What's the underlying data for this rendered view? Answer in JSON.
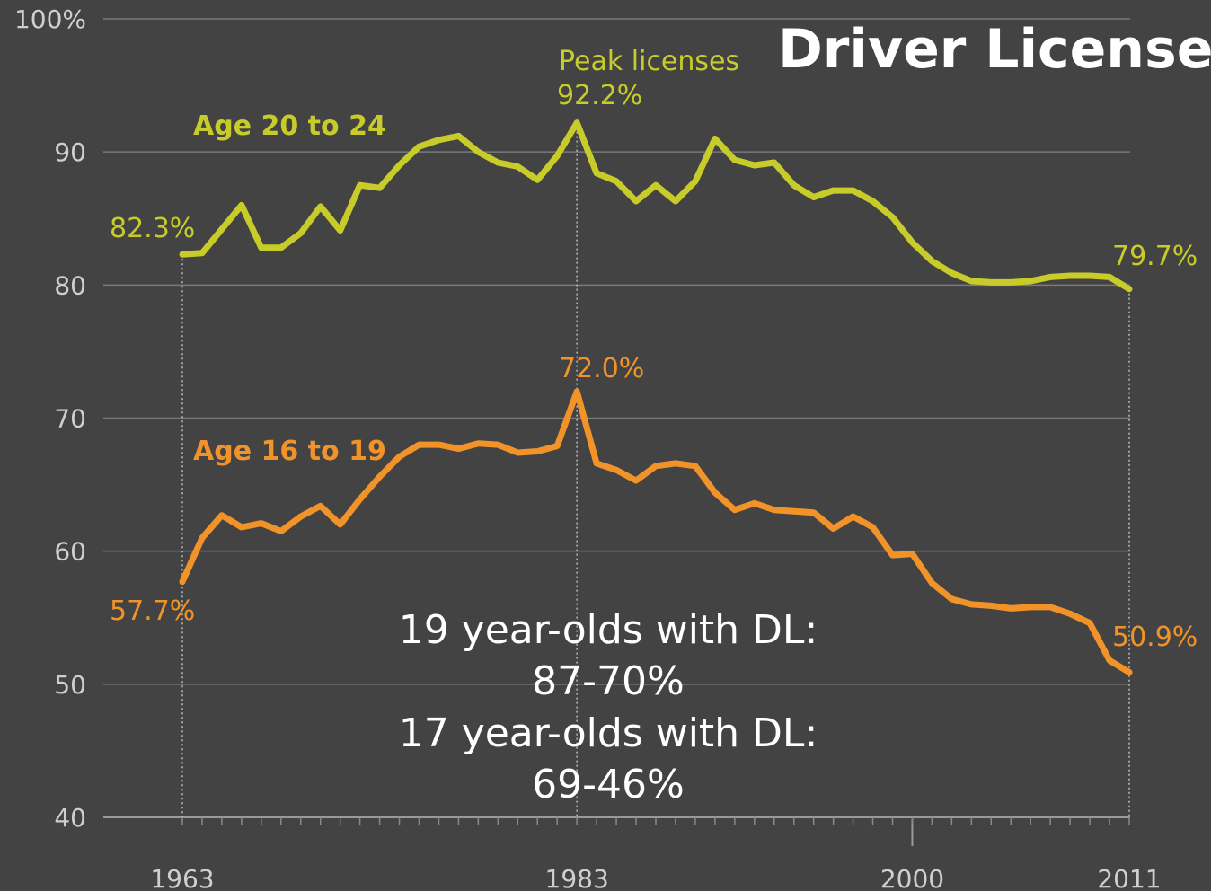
{
  "chart_data": {
    "type": "line",
    "title": "Driver Licenses",
    "xlabel": "",
    "ylabel": "",
    "x_ticks": [
      "1963",
      "1983",
      "2000",
      "2011"
    ],
    "y_ticks": [
      "100%",
      "90",
      "80",
      "70",
      "60",
      "50",
      "40"
    ],
    "ylim": [
      40,
      100
    ],
    "xlim": [
      1963,
      2011
    ],
    "grid": true,
    "series": [
      {
        "name": "Age 20 to 24",
        "color": "#c8cc2a",
        "x": [
          1963,
          1964,
          1965,
          1966,
          1967,
          1968,
          1969,
          1970,
          1971,
          1972,
          1973,
          1974,
          1975,
          1976,
          1977,
          1978,
          1979,
          1980,
          1981,
          1982,
          1983,
          1984,
          1985,
          1986,
          1987,
          1988,
          1989,
          1990,
          1991,
          1992,
          1993,
          1994,
          1995,
          1996,
          1997,
          1998,
          1999,
          2000,
          2001,
          2002,
          2003,
          2004,
          2005,
          2006,
          2007,
          2008,
          2009,
          2010,
          2011
        ],
        "values": [
          82.3,
          82.4,
          84.2,
          86.0,
          82.8,
          82.8,
          83.9,
          85.9,
          84.1,
          87.5,
          87.3,
          89.0,
          90.4,
          90.9,
          91.2,
          90.0,
          89.2,
          88.9,
          87.9,
          89.7,
          92.2,
          88.4,
          87.8,
          86.3,
          87.5,
          86.3,
          87.8,
          91.0,
          89.4,
          89.0,
          89.2,
          87.5,
          86.6,
          87.1,
          87.1,
          86.3,
          85.1,
          83.2,
          81.8,
          80.9,
          80.3,
          80.2,
          80.2,
          80.3,
          80.6,
          80.7,
          80.7,
          80.6,
          79.7
        ]
      },
      {
        "name": "Age 16 to 19",
        "color": "#f2932a",
        "x": [
          1963,
          1964,
          1965,
          1966,
          1967,
          1968,
          1969,
          1970,
          1971,
          1972,
          1973,
          1974,
          1975,
          1976,
          1977,
          1978,
          1979,
          1980,
          1981,
          1982,
          1983,
          1984,
          1985,
          1986,
          1987,
          1988,
          1989,
          1990,
          1991,
          1992,
          1993,
          1994,
          1995,
          1996,
          1997,
          1998,
          1999,
          2000,
          2001,
          2002,
          2003,
          2004,
          2005,
          2006,
          2007,
          2008,
          2009,
          2010,
          2011
        ],
        "values": [
          57.7,
          61.0,
          62.7,
          61.8,
          62.1,
          61.5,
          62.6,
          63.4,
          62.0,
          63.9,
          65.6,
          67.1,
          68.0,
          68.0,
          67.7,
          68.1,
          68.0,
          67.4,
          67.5,
          67.9,
          72.0,
          66.6,
          66.1,
          65.3,
          66.4,
          66.6,
          66.4,
          64.4,
          63.1,
          63.6,
          63.1,
          63.0,
          62.9,
          61.7,
          62.6,
          61.8,
          59.7,
          59.8,
          57.6,
          56.4,
          56.0,
          55.9,
          55.7,
          55.8,
          55.8,
          55.3,
          54.6,
          51.8,
          50.9
        ]
      }
    ],
    "annotations": {
      "peak_title": "Peak licenses",
      "peak_20_24": "92.2%",
      "peak_16_19": "72.0%",
      "start_20_24": "82.3%",
      "end_20_24": "79.7%",
      "start_16_19": "57.7%",
      "end_16_19": "50.9%"
    },
    "note_lines": [
      "19 year-olds with DL:",
      "87-70%",
      "17 year-olds with DL:",
      "69-46%"
    ]
  }
}
